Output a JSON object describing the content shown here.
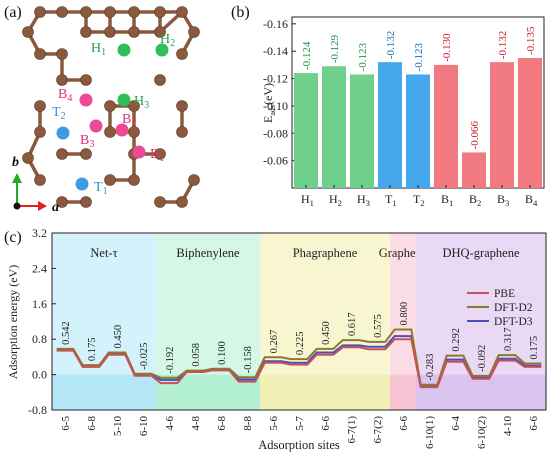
{
  "panel_labels": {
    "a": "(a)",
    "b": "(b)",
    "c": "(c)"
  },
  "structure": {
    "site_labels": [
      {
        "id": "H1",
        "base": "H",
        "sub": "1",
        "color": "#2e9e4f"
      },
      {
        "id": "H2",
        "base": "H",
        "sub": "2",
        "color": "#2e9e4f"
      },
      {
        "id": "H3",
        "base": "H",
        "sub": "3",
        "color": "#2e9e4f"
      },
      {
        "id": "B4",
        "base": "B",
        "sub": "4",
        "color": "#e0327a"
      },
      {
        "id": "B2",
        "base": "B",
        "sub": "2",
        "color": "#e0327a"
      },
      {
        "id": "B3",
        "base": "B",
        "sub": "3",
        "color": "#e0327a"
      },
      {
        "id": "B1",
        "base": "B",
        "sub": "1",
        "color": "#e0327a"
      },
      {
        "id": "T2",
        "base": "T",
        "sub": "2",
        "color": "#3a8fd8"
      },
      {
        "id": "T1",
        "base": "T",
        "sub": "1",
        "color": "#3a8fd8"
      }
    ],
    "axis_labels": {
      "a": "a",
      "b": "b"
    },
    "colors": {
      "carbon": "#8b5a3c",
      "bond": "#8b5a3c",
      "hollow": "#2fbf5a",
      "bridge": "#ec4b93",
      "top": "#3d9be6",
      "axis_a": "#e02020",
      "axis_b": "#22aa22"
    }
  },
  "chart_data": [
    {
      "type": "bar",
      "ylabel": "E",
      "ylabel_sub": "ads",
      "ylabel_unit": "(eV)",
      "ylim": [
        -0.04,
        -0.165
      ],
      "yticks": [
        -0.06,
        -0.08,
        -0.1,
        -0.12,
        -0.14,
        -0.16
      ],
      "ytick_labels": [
        "-0.06",
        "-0.08",
        "-0.10",
        "-0.12",
        "-0.14",
        "-0.16"
      ],
      "categories": [
        {
          "base": "H",
          "sub": "1"
        },
        {
          "base": "H",
          "sub": "2"
        },
        {
          "base": "H",
          "sub": "3"
        },
        {
          "base": "T",
          "sub": "1"
        },
        {
          "base": "T",
          "sub": "2"
        },
        {
          "base": "B",
          "sub": "1"
        },
        {
          "base": "B",
          "sub": "2"
        },
        {
          "base": "B",
          "sub": "3"
        },
        {
          "base": "B",
          "sub": "4"
        }
      ],
      "values": [
        -0.124,
        -0.129,
        -0.123,
        -0.132,
        -0.123,
        -0.13,
        -0.066,
        -0.132,
        -0.135
      ],
      "value_labels": [
        "-0.124",
        "-0.129",
        "-0.123",
        "-0.132",
        "-0.123",
        "-0.130",
        "-0.066",
        "-0.132",
        "-0.135"
      ],
      "groups": [
        "H",
        "H",
        "H",
        "T",
        "T",
        "B",
        "B",
        "B",
        "B"
      ],
      "colors": {
        "H": "#6fd08c",
        "T": "#45a8ec",
        "B": "#f07a80",
        "H_label": "#22924a",
        "T_label": "#1c6fb5",
        "B_label": "#c8202b"
      }
    },
    {
      "type": "line",
      "ylabel": "Adsorption energy (eV)",
      "xlabel": "Adsorption sites",
      "ylim": [
        -0.8,
        3.2
      ],
      "yticks": [
        -0.8,
        0.0,
        0.8,
        1.6,
        2.4,
        3.2
      ],
      "ytick_labels": [
        "-0.8",
        "0.0",
        "0.8",
        "1.6",
        "2.4",
        "3.2"
      ],
      "sites": [
        "6-5",
        "6-8",
        "5-10",
        "6-10",
        "4-6",
        "4-8",
        "6-8",
        "8-8",
        "5-6",
        "5-7",
        "6-6",
        "6-7(1)",
        "6-7(2)",
        "6-6",
        "6-10(1)",
        "6-4",
        "6-10(2)",
        "4-10",
        "6-6"
      ],
      "value_labels": [
        "0.542",
        "0.175",
        "0.450",
        "-0.025",
        "-0.192",
        "0.058",
        "0.100",
        "-0.158",
        "0.267",
        "0.225",
        "0.450",
        "0.617",
        "0.575",
        "0.800",
        "-0.283",
        "0.292",
        "-0.092",
        "0.317",
        "0.175"
      ],
      "regions": [
        {
          "name": "Net-τ",
          "start": 0,
          "end": 4,
          "color": "#d4f2fb"
        },
        {
          "name": "Biphenylene",
          "start": 4,
          "end": 8,
          "color": "#d4f7e6"
        },
        {
          "name": "Phagraphene",
          "start": 8,
          "end": 13,
          "color": "#f8f6d0"
        },
        {
          "name": "Graphene",
          "start": 13,
          "end": 14,
          "color": "#fbdde6"
        },
        {
          "name": "DHQ-graphene",
          "start": 14,
          "end": 19,
          "color": "#ead9f5"
        }
      ],
      "series": [
        {
          "name": "PBE",
          "color": "#c8505a",
          "values": [
            0.542,
            0.175,
            0.45,
            -0.025,
            -0.192,
            0.058,
            0.1,
            -0.158,
            0.267,
            0.225,
            0.45,
            0.617,
            0.575,
            0.8,
            -0.283,
            0.292,
            -0.092,
            0.317,
            0.175
          ]
        },
        {
          "name": "DFT-D2",
          "color": "#8a7a2a",
          "values": [
            0.58,
            0.215,
            0.5,
            0.02,
            -0.07,
            0.09,
            0.13,
            -0.06,
            0.39,
            0.35,
            0.58,
            0.78,
            0.74,
            1.02,
            -0.23,
            0.43,
            -0.03,
            0.44,
            0.25
          ]
        },
        {
          "name": "DFT-D3",
          "color": "#4a4fc0",
          "values": [
            0.55,
            0.18,
            0.46,
            -0.01,
            -0.12,
            0.06,
            0.1,
            -0.11,
            0.3,
            0.27,
            0.5,
            0.66,
            0.63,
            0.87,
            -0.26,
            0.34,
            -0.06,
            0.36,
            0.2
          ]
        }
      ],
      "legend_position": "right"
    }
  ]
}
